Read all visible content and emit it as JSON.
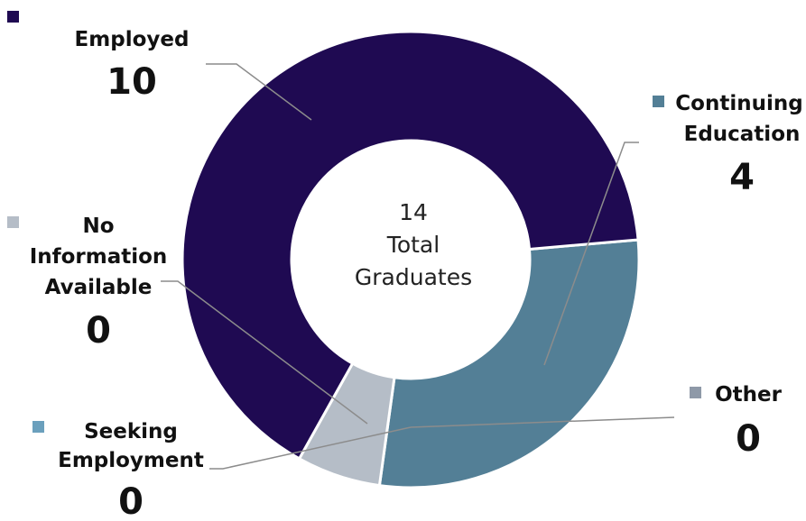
{
  "chart_data": {
    "type": "donut",
    "center": {
      "value": "14",
      "line1": "Total",
      "line2": "Graduates"
    },
    "slices": [
      {
        "key": "employed",
        "name": "Employed",
        "value": 10,
        "value_text": "10",
        "display_value": 9.17,
        "color": "#1f0a52"
      },
      {
        "key": "continuing",
        "name": "Continuing Education",
        "value": 4,
        "value_text": "4",
        "display_value": 4.0,
        "color": "#537f96"
      },
      {
        "key": "other",
        "name": "Other",
        "value": 0,
        "value_text": "0",
        "display_value": 0.0,
        "color": "#8e99a8"
      },
      {
        "key": "seeking",
        "name": "Seeking Employment",
        "value": 0,
        "value_text": "0",
        "display_value": 0.0,
        "color": "#6ba0bd"
      },
      {
        "key": "noinfo",
        "name": "No Information Available",
        "value": 0,
        "value_text": "0",
        "display_value": 0.83,
        "color": "#b5bdc7"
      }
    ]
  }
}
